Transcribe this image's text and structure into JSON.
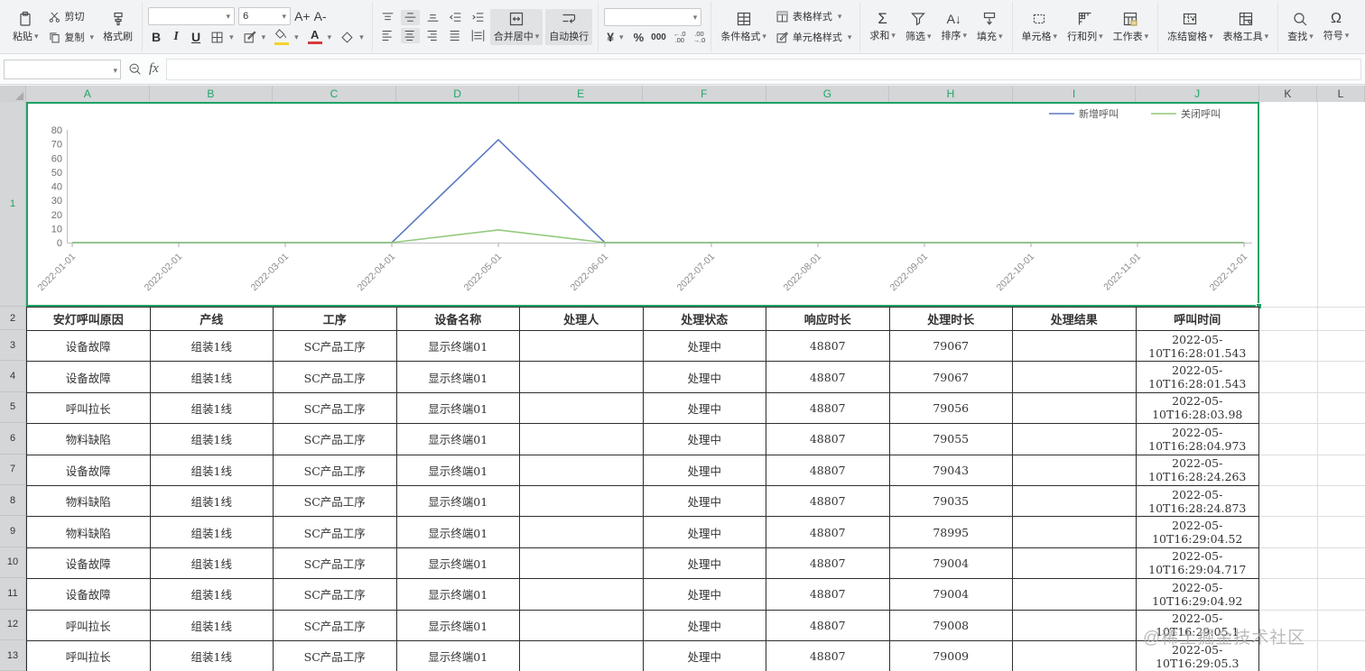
{
  "toolbar": {
    "paste_label": "粘贴",
    "cut_label": "剪切",
    "copy_label": "复制",
    "format_painter_label": "格式刷",
    "font_name_value": "",
    "font_size_value": "6",
    "font_larger": "A+",
    "font_smaller": "A-",
    "bold": "B",
    "italic": "I",
    "underline": "U",
    "font_color_glyph": "A",
    "merge_center_label": "合并居中",
    "wrap_label": "自动换行",
    "number_format_value": "",
    "currency_glyph": "¥",
    "percent_glyph": "%",
    "thousand_glyph": "000",
    "decimal_increase_glyph": "←.0\n.00",
    "decimal_decrease_glyph": ".00\n→.0",
    "conditional_label": "条件格式",
    "table_style_label": "表格样式",
    "cell_style_label": "单元格样式",
    "sum_glyph": "Σ",
    "sum_label": "求和",
    "filter_label": "筛选",
    "sort_glyph": "A↓",
    "sort_label": "排序",
    "fill_label": "填充",
    "cells_label": "单元格",
    "rowcol_label": "行和列",
    "worksheet_label": "工作表",
    "freeze_label": "冻结窗格",
    "tabletools_label": "表格工具",
    "find_label": "查找",
    "symbol_glyph": "Ω",
    "symbol_label": "符号"
  },
  "formula_bar": {
    "name_box_value": "",
    "fx_label": "fx",
    "formula_value": ""
  },
  "sheet": {
    "columns": [
      "A",
      "B",
      "C",
      "D",
      "E",
      "F",
      "G",
      "H",
      "I",
      "J",
      "K",
      "L"
    ],
    "selected_columns": [
      "A",
      "B",
      "C",
      "D",
      "E",
      "F",
      "G",
      "H",
      "I",
      "J"
    ],
    "rows": [
      "1",
      "2",
      "3",
      "4",
      "5",
      "6",
      "7",
      "8",
      "9",
      "10",
      "11",
      "12",
      "13"
    ],
    "selected_rows": [
      "1"
    ]
  },
  "chart_data": {
    "type": "line",
    "x": [
      "2022-01-01",
      "2022-02-01",
      "2022-03-01",
      "2022-04-01",
      "2022-05-01",
      "2022-06-01",
      "2022-07-01",
      "2022-08-01",
      "2022-09-01",
      "2022-10-01",
      "2022-11-01",
      "2022-12-01"
    ],
    "series": [
      {
        "name": "新增呼叫",
        "color": "#5b79c3",
        "values": [
          0,
          0,
          0,
          0,
          73,
          0,
          0,
          0,
          0,
          0,
          0,
          0
        ]
      },
      {
        "name": "关闭呼叫",
        "color": "#94ca7d",
        "values": [
          0,
          0,
          0,
          0,
          9,
          0,
          0,
          0,
          0,
          0,
          0,
          0
        ]
      }
    ],
    "ylim": [
      0,
      80
    ],
    "yticks": [
      0,
      10,
      20,
      30,
      40,
      50,
      60,
      70,
      80
    ],
    "legend_position": "top-right",
    "grid": false,
    "title": "",
    "xlabel": "",
    "ylabel": ""
  },
  "table": {
    "headers": [
      "安灯呼叫原因",
      "产线",
      "工序",
      "设备名称",
      "处理人",
      "处理状态",
      "响应时长",
      "处理时长",
      "处理结果",
      "呼叫时间"
    ],
    "rows": [
      [
        "设备故障",
        "组装1线",
        "SC产品工序",
        "显示终端01",
        "",
        "处理中",
        "48807",
        "79067",
        "",
        "2022-05-\n10T16:28:01.543"
      ],
      [
        "设备故障",
        "组装1线",
        "SC产品工序",
        "显示终端01",
        "",
        "处理中",
        "48807",
        "79067",
        "",
        "2022-05-\n10T16:28:01.543"
      ],
      [
        "呼叫拉长",
        "组装1线",
        "SC产品工序",
        "显示终端01",
        "",
        "处理中",
        "48807",
        "79056",
        "",
        "2022-05-\n10T16:28:03.98"
      ],
      [
        "物料缺陷",
        "组装1线",
        "SC产品工序",
        "显示终端01",
        "",
        "处理中",
        "48807",
        "79055",
        "",
        "2022-05-\n10T16:28:04.973"
      ],
      [
        "设备故障",
        "组装1线",
        "SC产品工序",
        "显示终端01",
        "",
        "处理中",
        "48807",
        "79043",
        "",
        "2022-05-\n10T16:28:24.263"
      ],
      [
        "物料缺陷",
        "组装1线",
        "SC产品工序",
        "显示终端01",
        "",
        "处理中",
        "48807",
        "79035",
        "",
        "2022-05-\n10T16:28:24.873"
      ],
      [
        "物料缺陷",
        "组装1线",
        "SC产品工序",
        "显示终端01",
        "",
        "处理中",
        "48807",
        "78995",
        "",
        "2022-05-\n10T16:29:04.52"
      ],
      [
        "设备故障",
        "组装1线",
        "SC产品工序",
        "显示终端01",
        "",
        "处理中",
        "48807",
        "79004",
        "",
        "2022-05-\n10T16:29:04.717"
      ],
      [
        "设备故障",
        "组装1线",
        "SC产品工序",
        "显示终端01",
        "",
        "处理中",
        "48807",
        "79004",
        "",
        "2022-05-\n10T16:29:04.92"
      ],
      [
        "呼叫拉长",
        "组装1线",
        "SC产品工序",
        "显示终端01",
        "",
        "处理中",
        "48807",
        "79008",
        "",
        "2022-05-\n10T16:29:05.1"
      ],
      [
        "呼叫拉长",
        "组装1线",
        "SC产品工序",
        "显示终端01",
        "",
        "处理中",
        "48807",
        "79009",
        "",
        "2022-05-\n10T16:29:05.3"
      ]
    ]
  },
  "watermark": {
    "text": "@稀土掘金技术社区"
  },
  "colors": {
    "accent_green": "#1fa264",
    "header_letter_green": "#21a567",
    "series_blue": "#5b79c3",
    "series_green": "#94ca7d",
    "axis_gray": "#bdbfc1",
    "toolbar_bg": "#f2f3f5",
    "header_bg": "#d4d6d8"
  }
}
